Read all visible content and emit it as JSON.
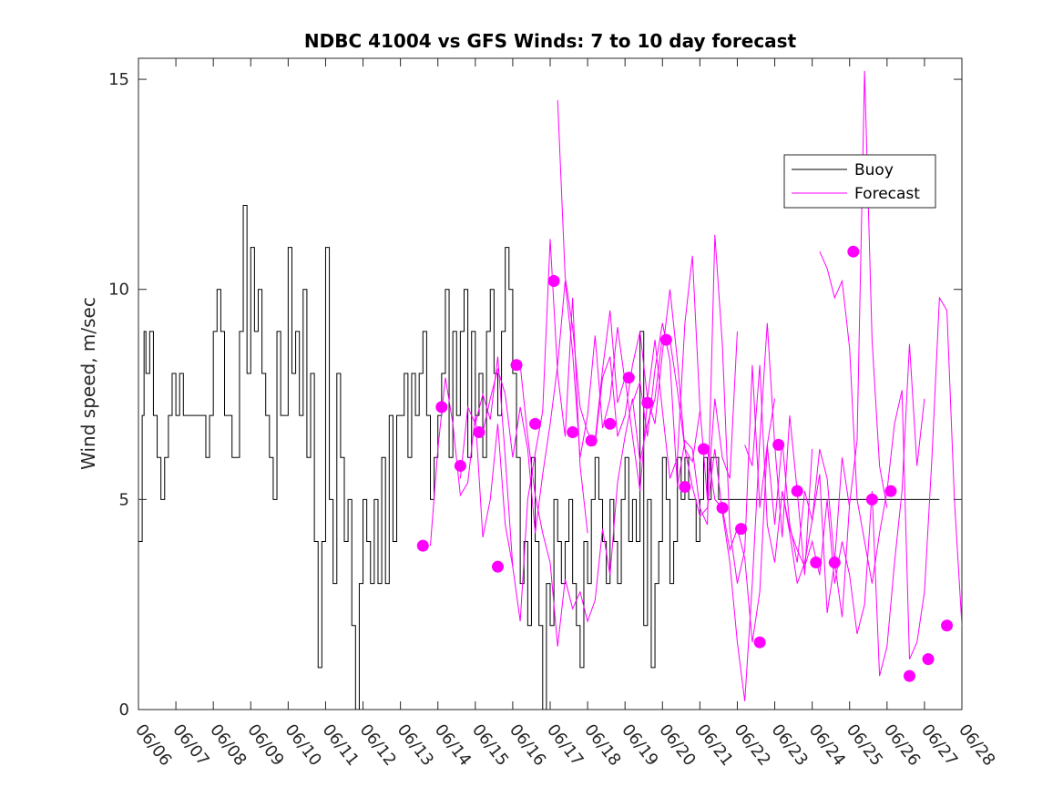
{
  "chart_data": {
    "type": "line",
    "title": "NDBC 41004 vs GFS Winds: 7 to 10 day forecast",
    "xlabel": "",
    "ylabel": "Wind speed, m/sec",
    "xlim": [
      0,
      22
    ],
    "ylim": [
      0,
      15.5
    ],
    "x_tick_labels": [
      "06/06",
      "06/07",
      "06/08",
      "06/09",
      "06/10",
      "06/11",
      "06/12",
      "06/13",
      "06/14",
      "06/15",
      "06/16",
      "06/17",
      "06/18",
      "06/19",
      "06/20",
      "06/21",
      "06/22",
      "06/23",
      "06/24",
      "06/25",
      "06/26",
      "06/27",
      "06/28"
    ],
    "y_ticks": [
      0,
      5,
      10,
      15
    ],
    "grid": false,
    "legend": {
      "placement": "top-right",
      "entries": [
        "Buoy",
        "Forecast"
      ]
    },
    "colors": {
      "buoy": "#000000",
      "forecast": "#ff00ff"
    },
    "series": [
      {
        "name": "Buoy",
        "kind": "step",
        "x": [
          0,
          0.1,
          0.15,
          0.2,
          0.3,
          0.4,
          0.5,
          0.6,
          0.7,
          0.8,
          0.9,
          1.0,
          1.1,
          1.2,
          1.4,
          1.6,
          1.8,
          1.9,
          2.0,
          2.1,
          2.2,
          2.3,
          2.5,
          2.7,
          2.8,
          2.9,
          3.0,
          3.1,
          3.2,
          3.3,
          3.4,
          3.5,
          3.6,
          3.7,
          3.8,
          4.0,
          4.1,
          4.2,
          4.3,
          4.4,
          4.5,
          4.6,
          4.7,
          4.8,
          4.9,
          5.0,
          5.1,
          5.2,
          5.3,
          5.4,
          5.5,
          5.6,
          5.7,
          5.8,
          5.9,
          6.0,
          6.1,
          6.2,
          6.3,
          6.4,
          6.5,
          6.6,
          6.7,
          6.8,
          6.9,
          7.0,
          7.1,
          7.2,
          7.3,
          7.4,
          7.5,
          7.6,
          7.7,
          7.8,
          7.9,
          8.0,
          8.1,
          8.2,
          8.3,
          8.4,
          8.5,
          8.6,
          8.7,
          8.8,
          8.9,
          9.0,
          9.1,
          9.2,
          9.3,
          9.4,
          9.5,
          9.6,
          9.7,
          9.8,
          9.9,
          10.0,
          10.1,
          10.2,
          10.3,
          10.4,
          10.5,
          10.6,
          10.7,
          10.8,
          10.9,
          11.0,
          11.1,
          11.2,
          11.3,
          11.4,
          11.5,
          11.6,
          11.7,
          11.8,
          11.9,
          12.0,
          12.1,
          12.2,
          12.3,
          12.4,
          12.5,
          12.6,
          12.7,
          12.8,
          12.9,
          13.0,
          13.1,
          13.2,
          13.3,
          13.4,
          13.5,
          13.6,
          13.7,
          13.8,
          13.9,
          14.0,
          14.1,
          14.2,
          14.3,
          14.4,
          14.5,
          14.6,
          14.7,
          14.8,
          14.9,
          15.0,
          15.1,
          15.2,
          15.3,
          15.4,
          15.5,
          15.6,
          15.7,
          15.8,
          15.9,
          16.0,
          16.1,
          16.2,
          16.3,
          16.4,
          16.5,
          16.6,
          16.7,
          16.8,
          16.9,
          17.0,
          17.1,
          17.2,
          17.3,
          17.4,
          17.5,
          17.6,
          17.7,
          17.8,
          17.9,
          18.0,
          18.1,
          18.2,
          18.3,
          18.4,
          18.5,
          18.6,
          18.7,
          18.8,
          18.9,
          19.0,
          19.1,
          19.2,
          19.3,
          19.4,
          19.5,
          19.6,
          19.7,
          19.8,
          19.9,
          20.0,
          20.1,
          20.2,
          20.3,
          20.4,
          20.5,
          20.6,
          20.7,
          20.8,
          20.9,
          21.0,
          21.1,
          21.2,
          21.3,
          21.4
        ],
        "y": [
          4,
          7,
          9,
          8,
          9,
          7,
          6,
          5,
          6,
          7,
          8,
          7,
          8,
          7,
          7,
          7,
          6,
          7,
          9,
          10,
          9,
          7,
          6,
          9,
          12,
          8,
          11,
          9,
          10,
          8,
          7,
          6,
          5,
          9,
          7,
          11,
          8,
          9,
          7,
          10,
          6,
          8,
          4,
          1,
          4,
          11,
          5,
          3,
          8,
          6,
          4,
          5,
          2,
          0,
          3,
          5,
          4,
          3,
          5,
          3,
          6,
          3,
          7,
          4,
          7,
          7,
          8,
          6,
          8,
          7,
          8,
          9,
          7,
          5,
          6,
          7,
          8,
          10,
          6,
          9,
          7,
          9,
          10,
          6,
          9,
          7,
          8,
          6,
          9,
          10,
          8,
          7,
          9,
          11,
          10,
          8,
          6,
          3,
          4,
          2,
          6,
          4,
          2,
          0,
          3,
          2,
          5,
          4,
          3,
          4,
          5,
          3,
          2,
          1,
          4,
          3,
          5,
          6,
          5,
          4,
          3,
          5,
          4,
          3,
          5,
          6,
          4,
          5,
          4,
          9,
          2,
          5,
          1,
          3,
          4,
          6,
          5,
          3,
          4,
          6,
          5,
          6,
          5,
          5,
          4,
          5,
          6,
          5,
          6,
          6,
          5,
          5,
          5,
          5,
          5,
          5,
          5,
          5,
          5,
          5,
          5,
          5,
          5,
          5,
          5,
          5,
          5,
          5,
          5,
          5,
          5,
          5,
          5,
          5,
          5,
          5,
          5,
          5,
          5,
          5,
          5,
          5,
          5,
          5,
          5,
          5,
          5,
          5,
          5,
          5,
          5,
          5,
          5,
          5,
          5,
          5,
          5,
          5,
          5,
          5,
          5,
          5,
          5,
          5,
          5,
          5,
          5,
          5,
          5,
          5
        ]
      },
      {
        "name": "Forecast",
        "kind": "lines",
        "lines": [
          {
            "x": [
              7.8,
              8.0,
              8.2,
              8.4,
              8.6,
              8.8,
              9.0,
              9.2,
              9.4,
              9.6,
              9.8,
              10.0
            ],
            "y": [
              3.9,
              6.2,
              7.9,
              6.8,
              5.1,
              5.4,
              7.0,
              4.1,
              5.0,
              6.8,
              4.4,
              3.4
            ]
          },
          {
            "x": [
              8.6,
              8.8,
              9.0,
              9.2,
              9.4,
              9.6,
              9.8,
              10.0,
              10.2,
              10.4,
              10.6,
              10.8,
              11.0,
              11.2,
              11.4,
              11.6,
              11.8,
              12.0
            ],
            "y": [
              5.5,
              7.2,
              6.8,
              7.5,
              6.9,
              8.4,
              6.0,
              3.4,
              2.1,
              5.0,
              6.1,
              7.1,
              11.2,
              8.0,
              6.5,
              9.8,
              5.8,
              4.2
            ]
          },
          {
            "x": [
              9.2,
              9.4,
              9.6,
              9.8,
              10.0,
              10.2,
              10.4,
              10.6,
              10.8,
              11.0,
              11.2,
              11.4,
              11.6,
              11.8,
              12.0,
              12.2,
              12.4,
              12.6,
              12.8,
              13.0
            ],
            "y": [
              6.6,
              7.4,
              8.1,
              7.5,
              6.0,
              7.2,
              6.2,
              4.2,
              5.6,
              6.8,
              8.2,
              10.2,
              8.5,
              6.0,
              7.0,
              8.9,
              6.7,
              7.4,
              9.1,
              7.8
            ]
          },
          {
            "x": [
              10.2,
              10.4,
              10.6,
              10.8,
              11.0,
              11.2,
              11.4,
              11.6,
              11.8,
              12.0,
              12.2,
              12.4,
              12.6,
              12.8,
              13.0,
              13.2,
              13.4,
              13.6,
              13.8,
              14.0
            ],
            "y": [
              8.2,
              6.5,
              5.1,
              4.2,
              3.5,
              1.5,
              3.1,
              2.4,
              2.8,
              2.1,
              2.6,
              4.3,
              3.2,
              5.4,
              6.5,
              7.4,
              5.9,
              6.8,
              7.4,
              8.9
            ]
          },
          {
            "x": [
              11.2,
              11.4,
              11.6,
              11.8,
              12.0,
              12.2,
              12.4,
              12.6,
              12.8,
              13.0,
              13.2,
              13.4,
              13.6,
              13.8,
              14.0,
              14.2,
              14.4,
              14.6,
              14.8,
              15.0
            ],
            "y": [
              14.5,
              10.3,
              9.1,
              7.2,
              6.6,
              6.3,
              7.9,
              8.4,
              6.5,
              7.0,
              8.2,
              9.0,
              7.4,
              6.8,
              8.5,
              10.0,
              8.3,
              6.2,
              5.9,
              7.1
            ]
          },
          {
            "x": [
              12.2,
              12.4,
              12.6,
              12.8,
              13.0,
              13.2,
              13.4,
              13.6,
              13.8,
              14.0,
              14.2,
              14.4,
              14.6,
              14.8,
              15.0,
              15.2,
              15.4,
              15.6,
              15.8,
              16.0
            ],
            "y": [
              6.4,
              8.1,
              9.5,
              7.3,
              7.9,
              6.5,
              5.2,
              7.4,
              8.8,
              7.1,
              5.5,
              6.0,
              9.2,
              10.8,
              7.2,
              5.0,
              7.4,
              6.0,
              5.5,
              9.0
            ]
          },
          {
            "x": [
              13.2,
              13.4,
              13.6,
              13.8,
              14.0,
              14.2,
              14.4,
              14.6,
              14.8,
              15.0,
              15.2,
              15.4,
              15.6,
              15.8,
              16.0,
              16.2,
              16.4,
              16.6,
              16.8,
              17.0
            ],
            "y": [
              7.3,
              7.8,
              6.5,
              8.1,
              9.2,
              8.3,
              5.3,
              6.4,
              6.2,
              4.8,
              4.4,
              11.3,
              8.7,
              4.3,
              3.0,
              3.8,
              8.2,
              4.8,
              6.3,
              7.4
            ]
          },
          {
            "x": [
              14.2,
              14.4,
              14.6,
              14.8,
              15.0,
              15.2,
              15.4,
              15.6,
              15.8,
              16.0,
              16.2,
              16.4,
              16.6,
              16.8,
              17.0,
              17.2,
              17.4,
              17.6,
              17.8,
              18.0
            ],
            "y": [
              8.8,
              7.6,
              6.2,
              5.3,
              4.6,
              4.8,
              6.2,
              4.7,
              3.5,
              1.6,
              0.2,
              3.0,
              6.4,
              9.2,
              6.3,
              4.1,
              7.0,
              5.2,
              3.2,
              6.2
            ]
          },
          {
            "x": [
              15.2,
              15.4,
              15.6,
              15.8,
              16.0,
              16.2,
              16.4,
              16.6,
              16.8,
              17.0,
              17.2,
              17.4,
              17.6,
              17.8,
              18.0,
              18.2,
              18.4,
              18.6,
              18.8,
              19.0
            ],
            "y": [
              6.2,
              5.0,
              4.8,
              3.8,
              4.3,
              3.6,
              1.6,
              2.8,
              6.3,
              4.4,
              6.4,
              4.4,
              3.5,
              5.2,
              4.5,
              5.6,
              2.3,
              3.5,
              6.0,
              4.8
            ]
          },
          {
            "x": [
              16.2,
              16.4,
              16.6,
              16.8,
              17.0,
              17.2,
              17.4,
              17.6,
              17.8,
              18.0,
              18.2,
              18.4,
              18.6,
              18.8,
              19.0,
              19.2,
              19.4,
              19.6,
              19.8,
              20.0
            ],
            "y": [
              6.3,
              5.8,
              8.2,
              4.4,
              3.5,
              5.2,
              4.2,
              3.0,
              3.5,
              4.5,
              6.2,
              5.5,
              3.5,
              2.2,
              4.9,
              6.4,
              15.2,
              8.8,
              5.8,
              4.8
            ]
          },
          {
            "x": [
              17.2,
              17.4,
              17.6,
              17.8,
              18.0,
              18.2,
              18.4,
              18.6,
              18.8,
              19.0,
              19.2,
              19.4,
              19.6,
              19.8,
              20.0,
              20.2,
              20.4,
              20.6,
              20.8,
              21.0
            ],
            "y": [
              5.2,
              4.3,
              3.8,
              3.4,
              4.0,
              3.2,
              5.0,
              3.0,
              4.0,
              3.2,
              1.8,
              2.5,
              5.2,
              0.8,
              1.5,
              3.5,
              5.2,
              8.7,
              5.8,
              7.4
            ]
          },
          {
            "x": [
              18.2,
              18.4,
              18.6,
              18.8,
              19.0,
              19.2,
              19.4,
              19.6,
              19.8,
              20.0,
              20.2,
              20.4,
              20.6,
              20.8,
              21.0,
              21.2,
              21.4,
              21.6,
              21.8,
              22.0
            ],
            "y": [
              10.9,
              10.5,
              9.8,
              10.2,
              8.6,
              5.0,
              4.0,
              3.0,
              4.2,
              5.2,
              6.8,
              7.6,
              1.2,
              1.6,
              2.8,
              6.0,
              9.8,
              9.5,
              5.0,
              2.0
            ]
          }
        ]
      },
      {
        "name": "",
        "kind": "markers",
        "x": [
          7.6,
          8.1,
          8.6,
          9.1,
          9.6,
          10.1,
          10.6,
          11.1,
          11.6,
          12.1,
          12.6,
          13.1,
          13.6,
          14.1,
          14.6,
          15.1,
          15.6,
          16.1,
          16.6,
          17.1,
          17.6,
          18.1,
          18.6,
          19.1,
          19.6,
          20.1,
          20.6,
          21.1,
          21.6
        ],
        "y": [
          3.9,
          7.2,
          5.8,
          6.6,
          3.4,
          8.2,
          6.8,
          10.2,
          6.6,
          6.4,
          6.8,
          7.9,
          7.3,
          8.8,
          5.3,
          6.2,
          4.8,
          4.3,
          1.6,
          6.3,
          5.2,
          3.5,
          3.5,
          10.9,
          5.0,
          5.2,
          0.8,
          1.2,
          2.0
        ]
      }
    ]
  }
}
